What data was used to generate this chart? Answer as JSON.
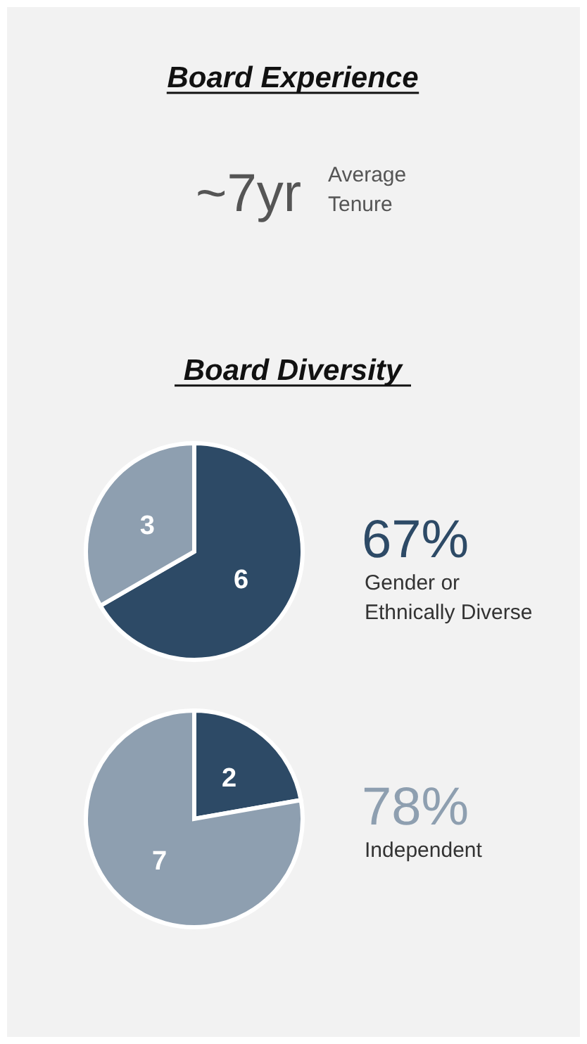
{
  "chart_data": [
    {
      "type": "other",
      "title": "Board Experience",
      "annotations": [
        "~7yr",
        "Average Tenure"
      ]
    },
    {
      "type": "pie",
      "title": "Board Diversity",
      "categories": [
        null,
        null
      ],
      "values": [
        6,
        3
      ],
      "colors": [
        "#2d4a66",
        "#8e9fb0"
      ],
      "data_labels": true,
      "annotations": [
        "67%",
        "Gender or Ethnically Diverse"
      ]
    },
    {
      "type": "pie",
      "categories": [
        null,
        null
      ],
      "values": [
        2,
        7
      ],
      "colors": [
        "#2d4a66",
        "#8e9fb0"
      ],
      "data_labels": true,
      "annotations": [
        "78%",
        "Independent"
      ]
    }
  ]
}
